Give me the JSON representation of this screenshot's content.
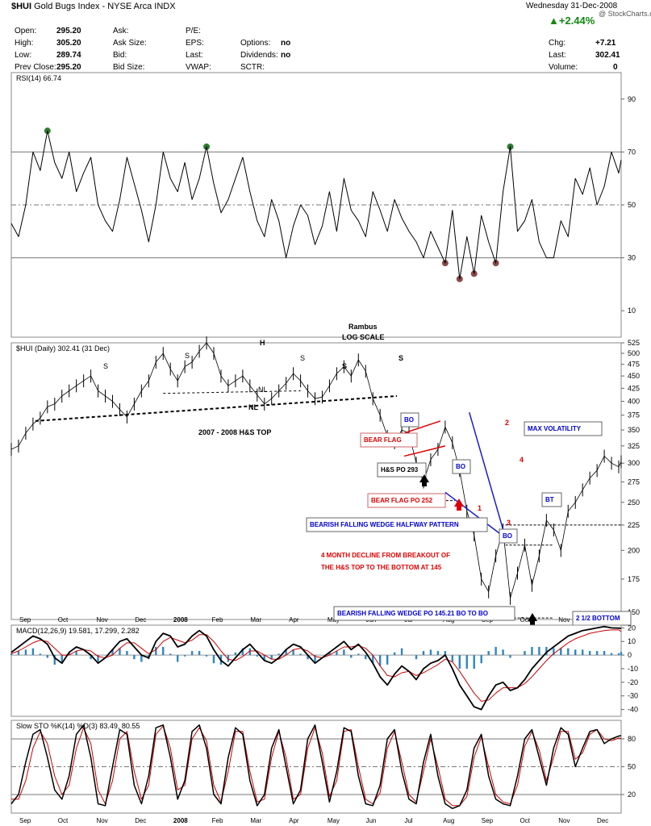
{
  "header": {
    "symbol": "$HUI",
    "name": "Gold Bugs Index - NYSE Arca INDX",
    "date": "Wednesday  31-Dec-2008",
    "copyright": "@ StockCharts.com"
  },
  "quote": [
    {
      "label": "Open:",
      "value": "295.20"
    },
    {
      "label": "High:",
      "value": "305.20"
    },
    {
      "label": "Low:",
      "value": "289.74"
    },
    {
      "label": "Prev Close:",
      "value": "295.20"
    },
    {
      "label": "Ask:"
    },
    {
      "label": "Ask Size:"
    },
    {
      "label": "Bid:"
    },
    {
      "label": "Bid Size:"
    },
    {
      "label": "P/E:"
    },
    {
      "label": "EPS:"
    },
    {
      "label": "Last:"
    },
    {
      "label": "VWAP:"
    },
    {
      "label": "Options:",
      "value": "no"
    },
    {
      "label": "Dividends:",
      "value": "no"
    },
    {
      "label": "SCTR:"
    },
    {
      "label": "",
      "value": "+2.44%"
    },
    {
      "label": "Chg:",
      "value": "+7.21"
    },
    {
      "label": "Last:",
      "value": "302.41"
    },
    {
      "label": "Volume:",
      "value": "0"
    }
  ],
  "colors": {
    "price": "#000000",
    "rsi": "#000000",
    "rsi_over": "#2e7d32",
    "rsi_under": "#8b4a4a",
    "macd_signal": "#cc0000",
    "macd_hist": "#2e86c1",
    "sto_d": "#cc0000",
    "annotation_blue": "#0000cc",
    "annotation_red": "#dd0000"
  },
  "chart_data": [
    {
      "type": "line",
      "panel": "rsi",
      "legend": "RSI(14) 66.74",
      "ylim": [
        0,
        100
      ],
      "yticks": [
        10,
        30,
        50,
        70,
        90
      ],
      "levels": [
        30,
        50,
        70
      ],
      "x": [
        0,
        3,
        6,
        9,
        12,
        15,
        18,
        21,
        24,
        27,
        30,
        33,
        36,
        39,
        42,
        45,
        48,
        51,
        54,
        57,
        60,
        63,
        66,
        69,
        72,
        75,
        78,
        81,
        84,
        87,
        90,
        93,
        96,
        99,
        102,
        105,
        108,
        111,
        114,
        117,
        120,
        123,
        126,
        129,
        132,
        135,
        138,
        141,
        144,
        147,
        150,
        153,
        156,
        159,
        162,
        165,
        168,
        171,
        174,
        177,
        180,
        183,
        186,
        189,
        192,
        195,
        198,
        201,
        204,
        207,
        210,
        213,
        216,
        219,
        222,
        225,
        228,
        231,
        234,
        237,
        240,
        243,
        246,
        249,
        252,
        253
      ],
      "series": [
        {
          "values": [
            43,
            38,
            50,
            70,
            63,
            78,
            66,
            60,
            70,
            55,
            62,
            68,
            50,
            44,
            40,
            52,
            68,
            58,
            48,
            36,
            50,
            70,
            60,
            55,
            66,
            52,
            60,
            72,
            58,
            47,
            52,
            60,
            68,
            55,
            44,
            38,
            52,
            44,
            30,
            42,
            50,
            46,
            35,
            42,
            55,
            40,
            60,
            48,
            44,
            38,
            55,
            48,
            40,
            52,
            45,
            40,
            36,
            30,
            40,
            34,
            28,
            48,
            22,
            38,
            24,
            46,
            36,
            28,
            55,
            72,
            40,
            44,
            52,
            36,
            30,
            30,
            44,
            38,
            60,
            54,
            64,
            50,
            57,
            70,
            62,
            67
          ]
        }
      ]
    },
    {
      "type": "line",
      "panel": "price",
      "title": "Rambus\nLOG SCALE",
      "legend": "$HUI (Daily) 302.41 (31 Dec)",
      "ylim": [
        145,
        525
      ],
      "log": true,
      "yticks": [
        150,
        175,
        200,
        225,
        250,
        275,
        300,
        325,
        350,
        375,
        400,
        425,
        450,
        475,
        500,
        525
      ],
      "xticks": [
        "Sep",
        "Oct",
        "Nov",
        "Dec",
        "2008",
        "Feb",
        "Mar",
        "Apr",
        "May",
        "Jun",
        "Jul",
        "Aug",
        "Sep",
        "Oct",
        "Nov",
        "Dec"
      ],
      "x": [
        0,
        3,
        6,
        9,
        12,
        15,
        18,
        21,
        24,
        27,
        30,
        33,
        36,
        39,
        42,
        45,
        48,
        51,
        54,
        57,
        60,
        63,
        66,
        69,
        72,
        75,
        78,
        81,
        84,
        87,
        90,
        93,
        96,
        99,
        102,
        105,
        108,
        111,
        114,
        117,
        120,
        123,
        126,
        129,
        132,
        135,
        138,
        141,
        144,
        147,
        150,
        153,
        156,
        159,
        162,
        165,
        168,
        171,
        174,
        177,
        180,
        183,
        186,
        189,
        192,
        195,
        198,
        201,
        204,
        207,
        210,
        213,
        216,
        219,
        222,
        225,
        228,
        231,
        234,
        237,
        240,
        243,
        246,
        249,
        252,
        253
      ],
      "series": [
        {
          "name": "$HUI",
          "values": [
            320,
            325,
            345,
            360,
            370,
            390,
            395,
            410,
            420,
            430,
            440,
            450,
            420,
            410,
            400,
            385,
            372,
            395,
            420,
            440,
            480,
            500,
            465,
            440,
            470,
            480,
            505,
            525,
            500,
            450,
            430,
            440,
            450,
            430,
            412,
            395,
            405,
            420,
            435,
            455,
            440,
            420,
            405,
            408,
            430,
            455,
            470,
            450,
            485,
            460,
            405,
            375,
            340,
            330,
            350,
            345,
            300,
            275,
            305,
            320,
            355,
            330,
            290,
            240,
            215,
            175,
            165,
            195,
            220,
            160,
            180,
            205,
            170,
            195,
            230,
            220,
            200,
            240,
            250,
            265,
            280,
            290,
            310,
            300,
            295,
            302
          ]
        }
      ],
      "annotations": [
        "S",
        "S",
        "H",
        "S",
        "S",
        "S",
        "NL",
        "NL",
        "2007 - 2008 H&S TOP",
        "BO",
        "BEAR FLAG",
        "BO",
        "H&S PO 293",
        "BEAR FLAG PO 252",
        "1",
        "2",
        "3",
        "4",
        "MAX VOLATILITY",
        "BT",
        "BO",
        "BEARISH FALLING WEDGE HALFWAY PATTERN",
        "4 MONTH DECLINE FROM BREAKOUT OF THE H&S TOP TO THE BOTTOM AT 145",
        "BEARISH FALLING WEDGE PO 145.21 BO TO BO",
        "2 1/2 BOTTOM"
      ]
    },
    {
      "type": "line",
      "panel": "macd",
      "legend": "MACD(12,26,9) 19.581, 17.299, 2.282",
      "ylim": [
        -45,
        22
      ],
      "yticks": [
        -40,
        -30,
        -20,
        -10,
        0,
        10,
        20
      ],
      "x": [
        0,
        3,
        6,
        9,
        12,
        15,
        18,
        21,
        24,
        27,
        30,
        33,
        36,
        39,
        42,
        45,
        48,
        51,
        54,
        57,
        60,
        63,
        66,
        69,
        72,
        75,
        78,
        81,
        84,
        87,
        90,
        93,
        96,
        99,
        102,
        105,
        108,
        111,
        114,
        117,
        120,
        123,
        126,
        129,
        132,
        135,
        138,
        141,
        144,
        147,
        150,
        153,
        156,
        159,
        162,
        165,
        168,
        171,
        174,
        177,
        180,
        183,
        186,
        189,
        192,
        195,
        198,
        201,
        204,
        207,
        210,
        213,
        216,
        219,
        222,
        225,
        228,
        231,
        234,
        237,
        240,
        243,
        246,
        249,
        252,
        253
      ],
      "series": [
        {
          "name": "MACD",
          "values": [
            2,
            6,
            10,
            14,
            12,
            8,
            -2,
            -6,
            2,
            6,
            4,
            0,
            -6,
            -2,
            4,
            10,
            12,
            6,
            0,
            -2,
            10,
            16,
            14,
            6,
            8,
            14,
            18,
            14,
            4,
            -4,
            -8,
            -2,
            4,
            8,
            2,
            -4,
            -6,
            -2,
            4,
            8,
            6,
            0,
            -6,
            -2,
            2,
            6,
            10,
            4,
            8,
            2,
            -6,
            -16,
            -22,
            -14,
            -8,
            -12,
            -18,
            -10,
            -6,
            -4,
            0,
            -10,
            -22,
            -30,
            -38,
            -40,
            -30,
            -22,
            -20,
            -26,
            -24,
            -18,
            -10,
            -4,
            2,
            6,
            10,
            14,
            16,
            18,
            19,
            20,
            21,
            20,
            19.8,
            19.581
          ]
        },
        {
          "name": "Signal",
          "values": [
            1,
            3,
            6,
            9,
            11,
            10,
            5,
            0,
            0,
            3,
            4,
            3,
            -1,
            -2,
            0,
            5,
            9,
            9,
            5,
            1,
            4,
            10,
            13,
            11,
            9,
            11,
            15,
            15,
            10,
            3,
            -3,
            -4,
            -1,
            3,
            3,
            0,
            -3,
            -3,
            0,
            4,
            5,
            3,
            -1,
            -2,
            0,
            3,
            6,
            6,
            7,
            5,
            0,
            -8,
            -15,
            -16,
            -13,
            -12,
            -15,
            -13,
            -10,
            -7,
            -3,
            -5,
            -12,
            -20,
            -28,
            -34,
            -33,
            -28,
            -24,
            -24,
            -24,
            -21,
            -16,
            -10,
            -4,
            1,
            5,
            9,
            12,
            14,
            16,
            17,
            18,
            18.5,
            18.5,
            17.299
          ]
        },
        {
          "name": "Histogram",
          "values": [
            1,
            3,
            4,
            5,
            1,
            -2,
            -7,
            -6,
            2,
            3,
            0,
            -3,
            -5,
            0,
            4,
            5,
            3,
            -3,
            -5,
            -3,
            6,
            6,
            1,
            -5,
            -1,
            3,
            3,
            -1,
            -6,
            -7,
            -5,
            2,
            5,
            5,
            -1,
            -4,
            -3,
            1,
            4,
            4,
            1,
            -3,
            -5,
            0,
            2,
            3,
            4,
            -2,
            1,
            -3,
            -6,
            -8,
            -7,
            2,
            5,
            0,
            -3,
            3,
            4,
            3,
            3,
            -5,
            -10,
            -10,
            -10,
            -6,
            3,
            6,
            4,
            -2,
            0,
            3,
            6,
            6,
            6,
            5,
            5,
            5,
            4,
            4,
            3,
            3,
            3,
            1.5,
            1.3,
            2.282
          ]
        }
      ]
    },
    {
      "type": "line",
      "panel": "stochastic",
      "legend": "Slow STO %K(14) %D(3) 83.49, 80.55",
      "ylim": [
        0,
        100
      ],
      "yticks": [
        20,
        50,
        80
      ],
      "levels": [
        20,
        50,
        80
      ],
      "x": [
        0,
        3,
        6,
        9,
        12,
        15,
        18,
        21,
        24,
        27,
        30,
        33,
        36,
        39,
        42,
        45,
        48,
        51,
        54,
        57,
        60,
        63,
        66,
        69,
        72,
        75,
        78,
        81,
        84,
        87,
        90,
        93,
        96,
        99,
        102,
        105,
        108,
        111,
        114,
        117,
        120,
        123,
        126,
        129,
        132,
        135,
        138,
        141,
        144,
        147,
        150,
        153,
        156,
        159,
        162,
        165,
        168,
        171,
        174,
        177,
        180,
        183,
        186,
        189,
        192,
        195,
        198,
        201,
        204,
        207,
        210,
        213,
        216,
        219,
        222,
        225,
        228,
        231,
        234,
        237,
        240,
        243,
        246,
        249,
        252,
        253
      ],
      "series": [
        {
          "name": "%K",
          "values": [
            10,
            20,
            55,
            85,
            90,
            60,
            25,
            15,
            40,
            85,
            95,
            60,
            10,
            8,
            50,
            90,
            85,
            30,
            10,
            40,
            92,
            95,
            60,
            15,
            35,
            88,
            95,
            70,
            20,
            10,
            60,
            92,
            85,
            35,
            8,
            20,
            70,
            90,
            50,
            10,
            25,
            80,
            95,
            55,
            12,
            45,
            92,
            88,
            40,
            10,
            8,
            30,
            80,
            90,
            45,
            15,
            10,
            55,
            85,
            40,
            10,
            5,
            8,
            25,
            70,
            85,
            40,
            15,
            10,
            8,
            40,
            80,
            90,
            60,
            30,
            70,
            92,
            85,
            50,
            70,
            88,
            90,
            75,
            80,
            83,
            83.49
          ]
        },
        {
          "name": "%D",
          "values": [
            15,
            15,
            35,
            70,
            88,
            75,
            40,
            20,
            30,
            70,
            92,
            75,
            25,
            10,
            35,
            80,
            88,
            45,
            15,
            30,
            85,
            94,
            70,
            25,
            30,
            80,
            92,
            78,
            30,
            12,
            45,
            88,
            88,
            45,
            12,
            15,
            60,
            88,
            60,
            15,
            20,
            70,
            92,
            65,
            18,
            35,
            88,
            90,
            50,
            15,
            10,
            22,
            70,
            88,
            55,
            20,
            12,
            45,
            80,
            50,
            15,
            8,
            8,
            18,
            60,
            82,
            50,
            20,
            12,
            10,
            30,
            72,
            88,
            68,
            35,
            60,
            88,
            88,
            58,
            65,
            85,
            90,
            80,
            78,
            81,
            80.55
          ]
        }
      ]
    }
  ]
}
